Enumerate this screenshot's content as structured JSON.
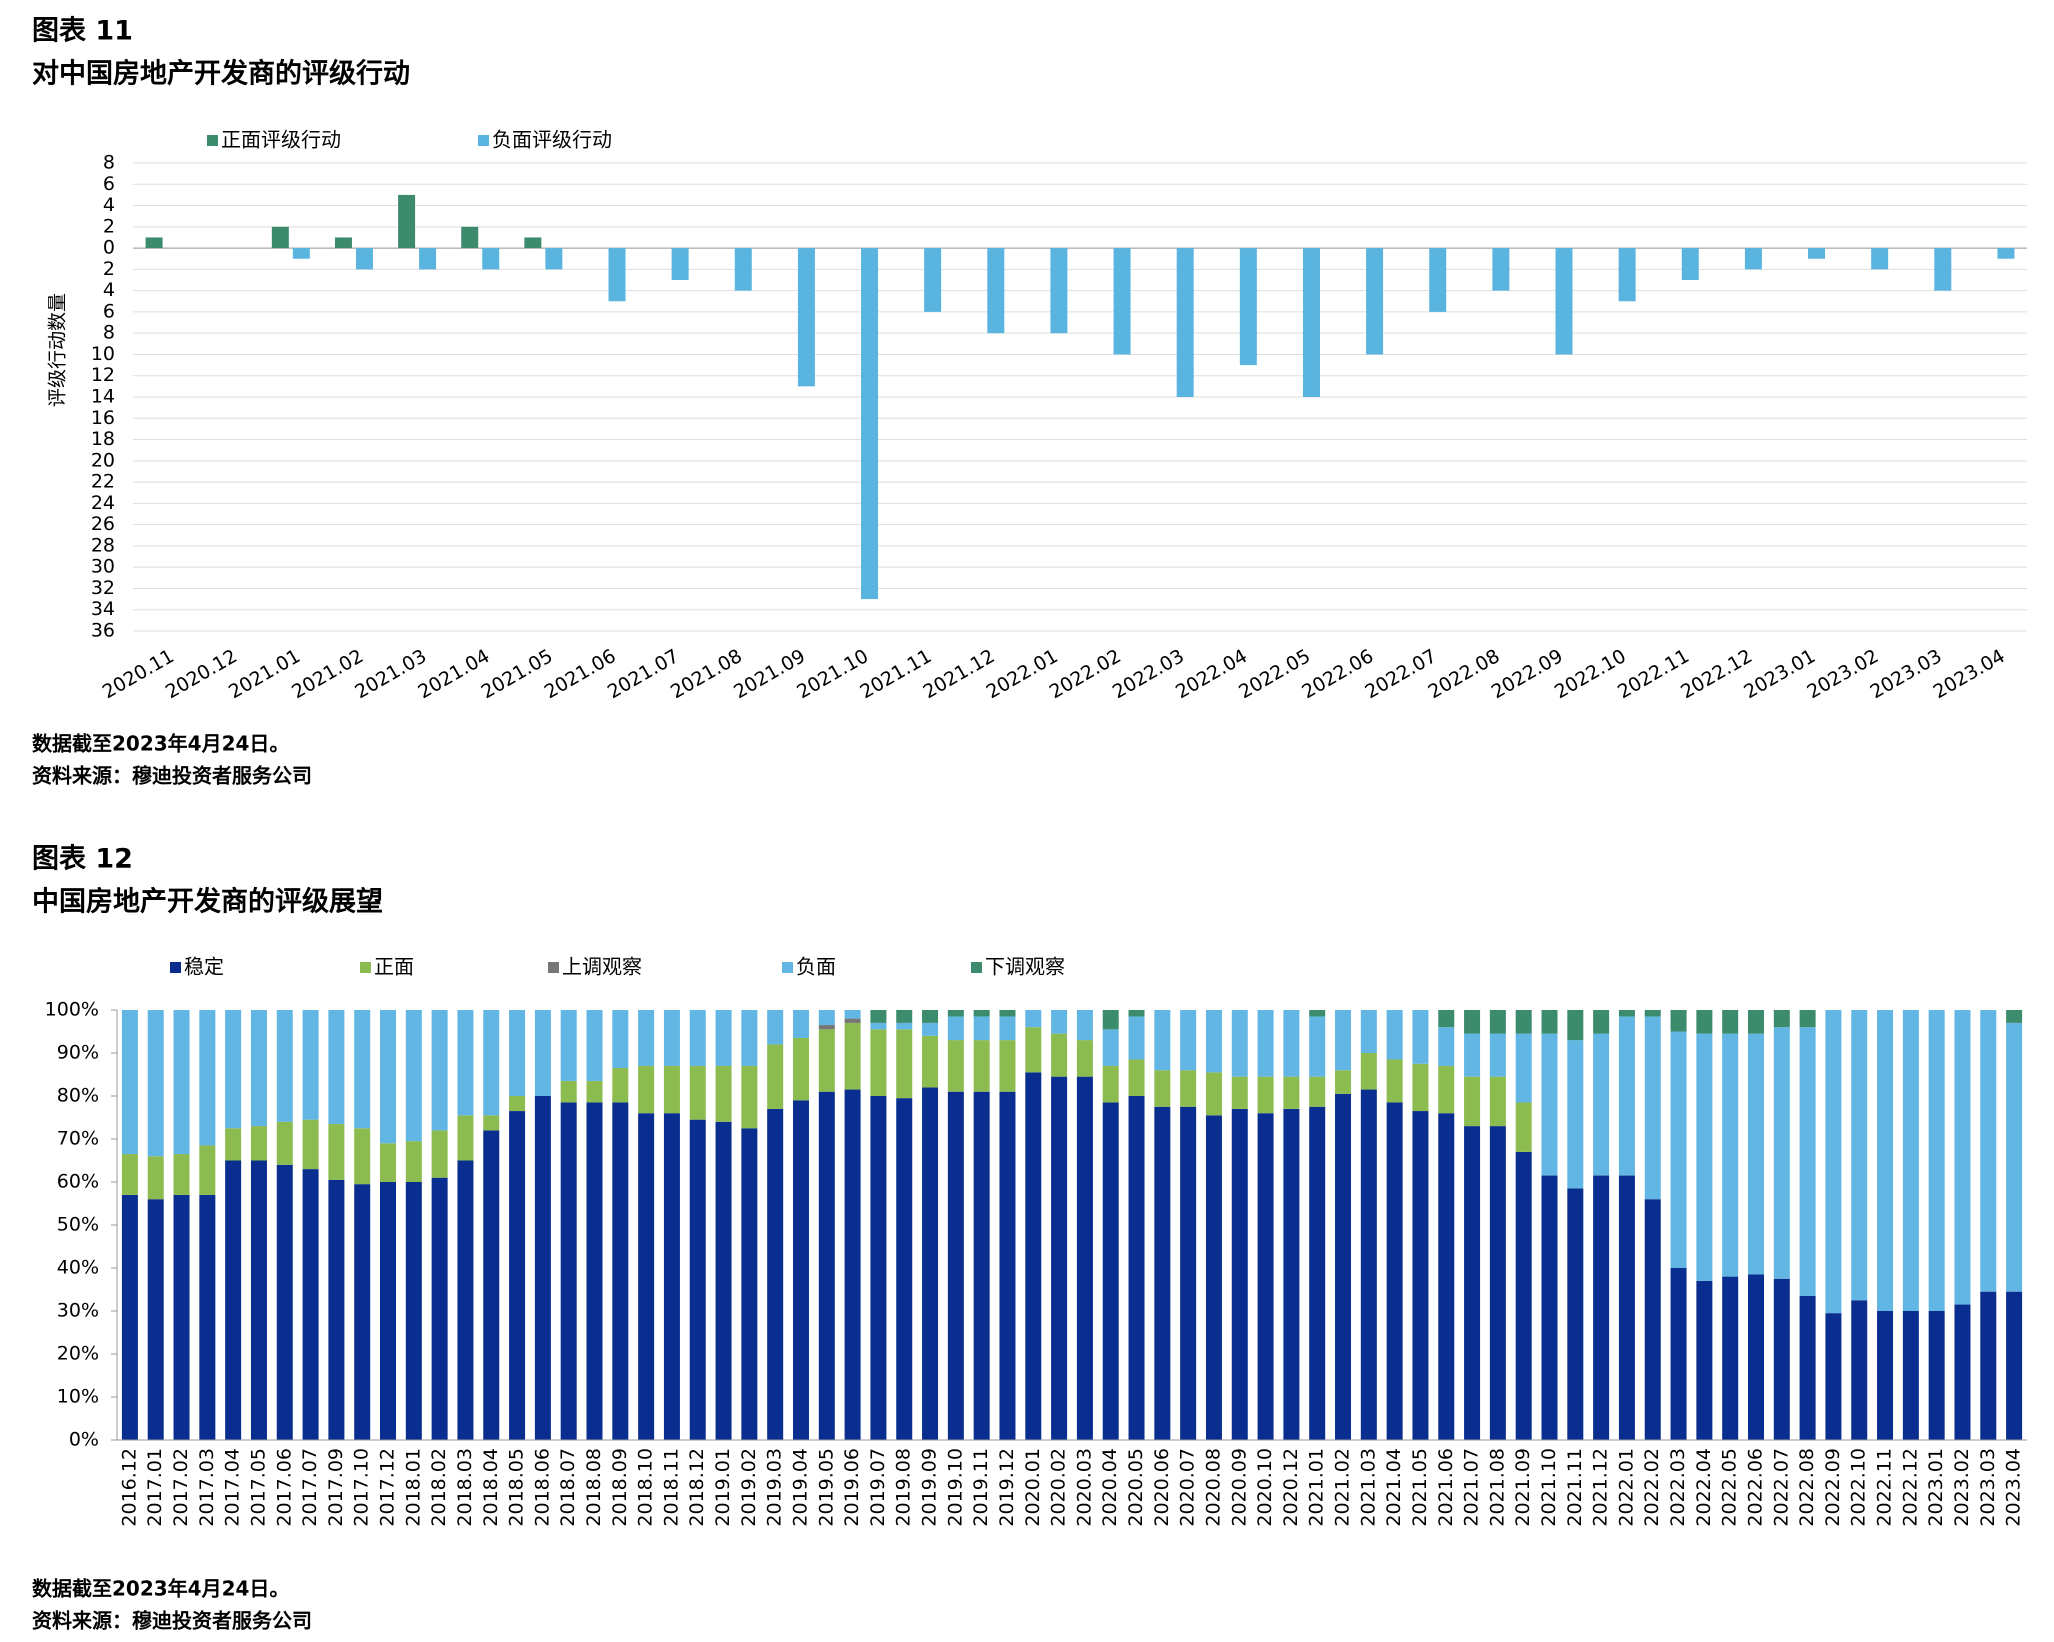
{
  "chart_data": [
    {
      "type": "bar",
      "figure_label": "图表 11",
      "title": "对中国房地产开发商的评级行动",
      "y_label": "评级行动数量",
      "notes": [
        "数据截至2023年4月24日。",
        "资料来源：穆迪投资者服务公司"
      ],
      "categories": [
        "2020.11",
        "2020.12",
        "2021.01",
        "2021.02",
        "2021.03",
        "2021.04",
        "2021.05",
        "2021.06",
        "2021.07",
        "2021.08",
        "2021.09",
        "2021.10",
        "2021.11",
        "2021.12",
        "2022.01",
        "2022.02",
        "2022.03",
        "2022.04",
        "2022.05",
        "2022.06",
        "2022.07",
        "2022.08",
        "2022.09",
        "2022.10",
        "2022.11",
        "2022.12",
        "2023.01",
        "2023.02",
        "2023.03",
        "2023.04"
      ],
      "series": [
        {
          "name": "正面评级行动",
          "color": "#3d8b6d",
          "values": [
            1,
            0,
            2,
            1,
            5,
            2,
            1,
            0,
            0,
            0,
            0,
            0,
            0,
            0,
            0,
            0,
            0,
            0,
            0,
            0,
            0,
            0,
            0,
            0,
            0,
            0,
            0,
            0,
            0,
            0
          ]
        },
        {
          "name": "负面评级行动",
          "color": "#5ab4e0",
          "values": [
            0,
            0,
            -1,
            -2,
            -2,
            -2,
            -2,
            -5,
            -3,
            -4,
            -13,
            -33,
            -6,
            -8,
            -8,
            -10,
            -14,
            -11,
            -14,
            -10,
            -6,
            -4,
            -10,
            -5,
            -3,
            -2,
            -1,
            -2,
            -4,
            -1
          ]
        }
      ],
      "ylim": [
        -36,
        8
      ],
      "yticks": [
        8,
        6,
        4,
        2,
        0,
        {
          "value": -2,
          "label": "2"
        },
        {
          "value": -4,
          "label": "4"
        },
        {
          "value": -6,
          "label": "6"
        },
        {
          "value": -8,
          "label": "8"
        },
        {
          "value": -10,
          "label": "10"
        },
        {
          "value": -12,
          "label": "12"
        },
        {
          "value": -14,
          "label": "14"
        },
        {
          "value": -16,
          "label": "16"
        },
        {
          "value": -18,
          "label": "18"
        },
        {
          "value": -20,
          "label": "20"
        },
        {
          "value": -22,
          "label": "22"
        },
        {
          "value": -24,
          "label": "24"
        },
        {
          "value": -26,
          "label": "26"
        },
        {
          "value": -28,
          "label": "28"
        },
        {
          "value": -30,
          "label": "30"
        },
        {
          "value": -32,
          "label": "32"
        },
        {
          "value": -34,
          "label": "34"
        },
        {
          "value": -36,
          "label": "36"
        }
      ],
      "grid": true
    },
    {
      "type": "stacked_bar",
      "figure_label": "图表 12",
      "title": "中国房地产开发商的评级展望",
      "notes": [
        "数据截至2023年4月24日。",
        "资料来源：穆迪投资者服务公司"
      ],
      "categories": [
        "2016.12",
        "2017.01",
        "2017.02",
        "2017.03",
        "2017.04",
        "2017.05",
        "2017.06",
        "2017.07",
        "2017.09",
        "2017.10",
        "2017.12",
        "2018.01",
        "2018.02",
        "2018.03",
        "2018.04",
        "2018.05",
        "2018.06",
        "2018.07",
        "2018.08",
        "2018.09",
        "2018.10",
        "2018.11",
        "2018.12",
        "2019.01",
        "2019.02",
        "2019.03",
        "2019.04",
        "2019.05",
        "2019.06",
        "2019.07",
        "2019.08",
        "2019.09",
        "2019.10",
        "2019.11",
        "2019.12",
        "2020.01",
        "2020.02",
        "2020.03",
        "2020.04",
        "2020.05",
        "2020.06",
        "2020.07",
        "2020.08",
        "2020.09",
        "2020.10",
        "2020.12",
        "2021.01",
        "2021.02",
        "2021.03",
        "2021.04",
        "2021.05",
        "2021.06",
        "2021.07",
        "2021.08",
        "2021.09",
        "2021.10",
        "2021.11",
        "2021.12",
        "2022.01",
        "2022.02",
        "2022.03",
        "2022.04",
        "2022.05",
        "2022.06",
        "2022.07",
        "2022.08",
        "2022.09",
        "2022.10",
        "2022.11",
        "2022.12",
        "2023.01",
        "2023.02",
        "2023.03",
        "2023.04"
      ],
      "series": [
        {
          "name": "稳定",
          "color": "#0a2e8f",
          "values": [
            57,
            56,
            57,
            57,
            65,
            65,
            64,
            63,
            60.5,
            59.5,
            60,
            60,
            61,
            65,
            72,
            76.5,
            80,
            78.5,
            78.5,
            78.5,
            76,
            76,
            74.5,
            74,
            72.5,
            77,
            79,
            81,
            81.5,
            80,
            79.5,
            82,
            81,
            81,
            81,
            85.5,
            84.5,
            84.5,
            78.5,
            80,
            77.5,
            77.5,
            75.5,
            77,
            76,
            77,
            77.5,
            80.5,
            81.5,
            78.5,
            76.5,
            76,
            73,
            73,
            67,
            61.5,
            58.5,
            61.5,
            61.5,
            56,
            40,
            37,
            38,
            38.5,
            37.5,
            33.5,
            29.5,
            32.5,
            30,
            30,
            30,
            31.5,
            34.5,
            34.5
          ]
        },
        {
          "name": "正面",
          "color": "#8cbc4f",
          "values": [
            9.5,
            10,
            9.5,
            11.5,
            7.5,
            8,
            10,
            11.5,
            13,
            13,
            9,
            9.5,
            11,
            10.5,
            3.5,
            3.5,
            0,
            5,
            5,
            8,
            11,
            11,
            12.5,
            13,
            14.5,
            15,
            14.5,
            14.5,
            15.5,
            15.5,
            16,
            12,
            12,
            12,
            12,
            10.5,
            10,
            8.5,
            8.5,
            8.5,
            8.5,
            8.5,
            10,
            7.5,
            8.5,
            7.5,
            7,
            5.5,
            8.5,
            10,
            11,
            11,
            11.5,
            11.5,
            11.5,
            0,
            0,
            0,
            0,
            0,
            0,
            0,
            0,
            0,
            0,
            0,
            0,
            0,
            0,
            0,
            0,
            0,
            0,
            0
          ]
        },
        {
          "name": "上调观察",
          "color": "#767676",
          "values": [
            0,
            0,
            0,
            0,
            0,
            0,
            0,
            0,
            0,
            0,
            0,
            0,
            0,
            0,
            0,
            0,
            0,
            0,
            0,
            0,
            0,
            0,
            0,
            0,
            0,
            0,
            0,
            1,
            1,
            0,
            0,
            0,
            0,
            0,
            0,
            0,
            0,
            0,
            0,
            0,
            0,
            0,
            0,
            0,
            0,
            0,
            0,
            0,
            0,
            0,
            0,
            0,
            0,
            0,
            0,
            0,
            0,
            0,
            0,
            0,
            0,
            0,
            0,
            0,
            0,
            0,
            0,
            0,
            0,
            0,
            0,
            0,
            0,
            0
          ]
        },
        {
          "name": "负面",
          "color": "#62b6e4",
          "values": [
            33.5,
            34,
            33.5,
            31.5,
            27.5,
            27,
            26,
            25.5,
            26.5,
            27.5,
            31,
            30.5,
            28,
            24.5,
            24.5,
            20,
            20,
            16.5,
            16.5,
            13.5,
            13,
            13,
            13,
            13,
            13,
            8,
            6.5,
            3.5,
            2,
            1.5,
            1.5,
            3,
            5.5,
            5.5,
            5.5,
            4,
            5.5,
            7,
            8.5,
            10,
            14,
            14,
            14.5,
            15.5,
            15.5,
            15.5,
            14,
            14,
            10,
            11.5,
            12.5,
            9,
            10,
            10,
            16,
            33,
            34.5,
            33,
            37,
            42.5,
            55,
            57.5,
            56.5,
            56,
            58.5,
            62.5,
            70.5,
            67.5,
            70,
            70,
            70,
            68.5,
            65.5,
            62.5
          ]
        },
        {
          "name": "下调观察",
          "color": "#3d8b6d",
          "values": [
            0,
            0,
            0,
            0,
            0,
            0,
            0,
            0,
            0,
            0,
            0,
            0,
            0,
            0,
            0,
            0,
            0,
            0,
            0,
            0,
            0,
            0,
            0,
            0,
            0,
            0,
            0,
            0,
            0,
            3,
            3,
            3,
            1.5,
            1.5,
            1.5,
            0,
            0,
            0,
            4.5,
            1.5,
            0,
            0,
            0,
            0,
            0,
            0,
            1.5,
            0,
            0,
            0,
            0,
            4,
            5.5,
            5.5,
            5.5,
            5.5,
            7,
            5.5,
            1.5,
            1.5,
            5,
            5.5,
            5.5,
            5.5,
            4,
            4,
            0,
            0,
            0,
            0,
            0,
            0,
            0,
            3
          ]
        }
      ],
      "ylim": [
        0,
        100
      ],
      "yticks": [
        {
          "value": 0,
          "label": "0%"
        },
        {
          "value": 10,
          "label": "10%"
        },
        {
          "value": 20,
          "label": "20%"
        },
        {
          "value": 30,
          "label": "30%"
        },
        {
          "value": 40,
          "label": "40%"
        },
        {
          "value": 50,
          "label": "50%"
        },
        {
          "value": 60,
          "label": "60%"
        },
        {
          "value": 70,
          "label": "70%"
        },
        {
          "value": 80,
          "label": "80%"
        },
        {
          "value": 90,
          "label": "90%"
        },
        {
          "value": 100,
          "label": "100%"
        }
      ],
      "grid": false
    }
  ]
}
